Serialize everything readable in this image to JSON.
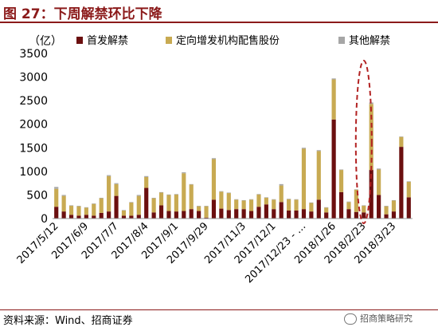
{
  "header": {
    "title": "图 27：下周解禁环比下降"
  },
  "footer": {
    "source": "资料来源：Wind、招商证券",
    "watermark": "招商策略研究"
  },
  "colors": {
    "first_unlock": "#6b0f0f",
    "placement_unlock": "#c8aa52",
    "other_unlock": "#a6a6a6",
    "title": "#8b1a1a",
    "highlight": "#b22222"
  },
  "chart_data": {
    "type": "bar",
    "stacked": true,
    "unit_label": "（亿）",
    "ylim": [
      0,
      3500
    ],
    "yticks": [
      0,
      500,
      1000,
      1500,
      2000,
      2500,
      3000,
      3500
    ],
    "x_tick_labels": [
      "2017/5/12",
      "2017/6/9",
      "2017/7/7",
      "2017/8/4",
      "2017/9/1",
      "2017/9/29",
      "2017/11/3",
      "2017/12/1",
      "2017/12/23 - …",
      "2018/1/26",
      "2018/2/23",
      "2018/3/23"
    ],
    "x_tick_positions": [
      0,
      4,
      8,
      12,
      16,
      20,
      25,
      29,
      33,
      37,
      41,
      45
    ],
    "legend_position": "top",
    "highlight": {
      "shape": "dashed-ellipse",
      "category_index": 41
    },
    "series": [
      {
        "name": "首发解禁",
        "values": [
          250,
          150,
          80,
          60,
          80,
          60,
          120,
          150,
          480,
          60,
          60,
          80,
          650,
          130,
          280,
          160,
          150,
          160,
          200,
          160,
          20,
          400,
          210,
          180,
          200,
          200,
          160,
          250,
          300,
          200,
          350,
          170,
          170,
          200,
          150,
          400,
          130,
          2100,
          560,
          200,
          140,
          130,
          1030,
          500,
          90,
          150,
          1520,
          450
        ]
      },
      {
        "name": "定向增发机构配售股份",
        "values": [
          380,
          330,
          190,
          200,
          150,
          250,
          310,
          750,
          250,
          110,
          280,
          400,
          230,
          300,
          270,
          340,
          360,
          800,
          520,
          100,
          240,
          860,
          360,
          360,
          200,
          180,
          240,
          260,
          140,
          200,
          350,
          240,
          230,
          1280,
          180,
          1030,
          100,
          850,
          470,
          150,
          470,
          140,
          1400,
          540,
          170,
          230,
          210,
          330
        ]
      },
      {
        "name": "其他解禁",
        "values": [
          40,
          20,
          10,
          10,
          10,
          10,
          10,
          20,
          20,
          10,
          10,
          20,
          20,
          10,
          10,
          10,
          10,
          20,
          10,
          10,
          10,
          20,
          10,
          10,
          10,
          10,
          10,
          10,
          10,
          10,
          30,
          10,
          10,
          20,
          10,
          20,
          10,
          20,
          10,
          10,
          10,
          10,
          30,
          20,
          10,
          10,
          10,
          10
        ]
      }
    ]
  }
}
